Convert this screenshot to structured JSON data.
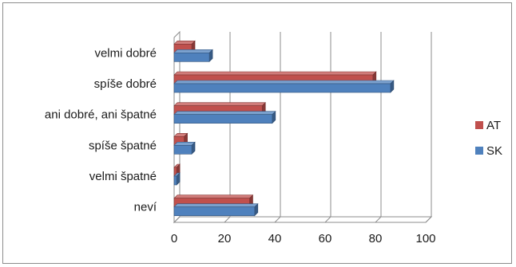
{
  "chart_data": {
    "type": "bar",
    "orientation": "horizontal",
    "style": "3d-clustered",
    "categories": [
      "velmi dobré",
      "spíše dobré",
      "ani dobré, ani špatné",
      "spíše špatné",
      "velmi špatné",
      "neví"
    ],
    "series": [
      {
        "name": "AT",
        "color": "#c0504d",
        "values": [
          7,
          79,
          35,
          4,
          1,
          30
        ]
      },
      {
        "name": "SK",
        "color": "#4f81bd",
        "values": [
          14,
          86,
          39,
          7,
          1,
          32
        ]
      }
    ],
    "x_ticks": [
      0,
      20,
      40,
      60,
      80,
      100
    ],
    "xlim": [
      0,
      100
    ],
    "grid": true,
    "legend_position": "right",
    "title": "",
    "xlabel": "",
    "ylabel": ""
  }
}
